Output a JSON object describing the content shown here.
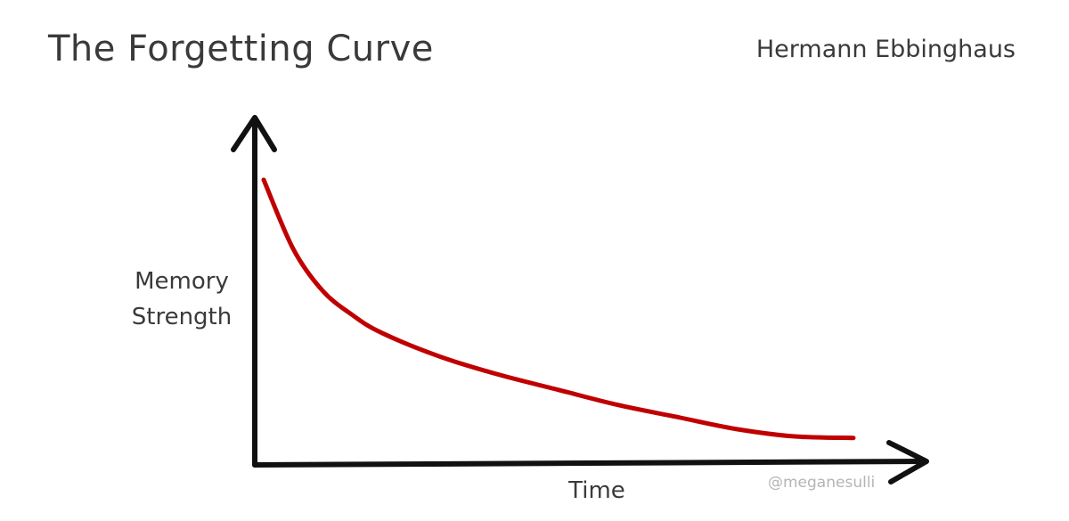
{
  "header": {
    "title": "The Forgetting Curve",
    "author": "Hermann Ebbinghaus"
  },
  "watermark": "@meganesulli",
  "chart_data": {
    "type": "line",
    "title": "The Forgetting Curve",
    "xlabel": "Time",
    "ylabel": [
      "Memory",
      "Strength"
    ],
    "axis_ticks": false,
    "grid": false,
    "legend": "none",
    "colors": {
      "axes": "#111111",
      "curve": "#c00000"
    },
    "series": [
      {
        "x": [
          0,
          0.05,
          0.1,
          0.15,
          0.2,
          0.3,
          0.4,
          0.5,
          0.6,
          0.7,
          0.8,
          0.9,
          1.0
        ],
        "values": [
          0.95,
          0.72,
          0.58,
          0.5,
          0.44,
          0.36,
          0.3,
          0.25,
          0.2,
          0.16,
          0.12,
          0.095,
          0.09
        ]
      }
    ]
  }
}
